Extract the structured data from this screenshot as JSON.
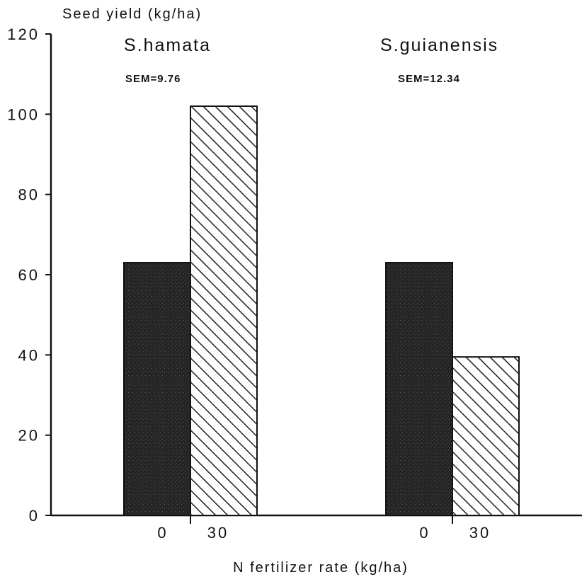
{
  "chart_data": {
    "type": "bar",
    "ylabel": "Seed yield (kg/ha)",
    "xlabel": "N fertilizer rate (kg/ha)",
    "ylim": [
      0,
      120
    ],
    "yticks": [
      "0",
      "20",
      "40",
      "60",
      "80",
      "100",
      "120"
    ],
    "groups": [
      {
        "name": "S.hamata",
        "sem": "SEM=9.76",
        "rates": [
          "0",
          "30"
        ],
        "values": [
          63,
          102
        ]
      },
      {
        "name": "S.guianensis",
        "sem": "SEM=12.34",
        "rates": [
          "0",
          "30"
        ],
        "values": [
          63,
          39.5
        ]
      }
    ],
    "colors": {
      "rate_0": "#222222",
      "rate_30_hatch": "#222222",
      "axis": "#111111"
    },
    "grid": false
  }
}
